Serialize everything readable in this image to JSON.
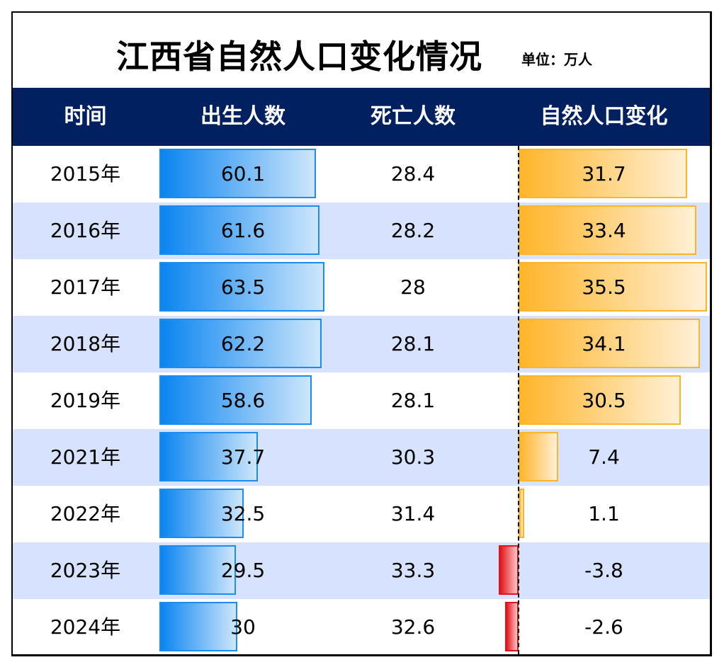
{
  "title": "江西省自然人口变化情况",
  "unit": "单位：万人",
  "header": {
    "time": "时间",
    "births": "出生人数",
    "deaths": "死亡人数",
    "natural_change": "自然人口变化"
  },
  "colors": {
    "header_bg": "#002060",
    "row_alt": "#d6e2ff",
    "births_bar": "#0a84f0",
    "positive_bar": "#ffb52a",
    "negative_bar": "#e0141c"
  },
  "chart_data": {
    "type": "table",
    "columns": [
      "时间",
      "出生人数",
      "死亡人数",
      "自然人口变化"
    ],
    "rows": [
      {
        "year": "2015年",
        "births": "60.1",
        "deaths": "28.4",
        "change": "31.7"
      },
      {
        "year": "2016年",
        "births": "61.6",
        "deaths": "28.2",
        "change": "33.4"
      },
      {
        "year": "2017年",
        "births": "63.5",
        "deaths": "28",
        "change": "35.5"
      },
      {
        "year": "2018年",
        "births": "62.2",
        "deaths": "28.1",
        "change": "34.1"
      },
      {
        "year": "2019年",
        "births": "58.6",
        "deaths": "28.1",
        "change": "30.5"
      },
      {
        "year": "2021年",
        "births": "37.7",
        "deaths": "30.3",
        "change": "7.4"
      },
      {
        "year": "2022年",
        "births": "32.5",
        "deaths": "31.4",
        "change": "1.1"
      },
      {
        "year": "2023年",
        "births": "29.5",
        "deaths": "33.3",
        "change": "-3.8"
      },
      {
        "year": "2024年",
        "births": "30",
        "deaths": "32.6",
        "change": "-2.6"
      }
    ]
  }
}
